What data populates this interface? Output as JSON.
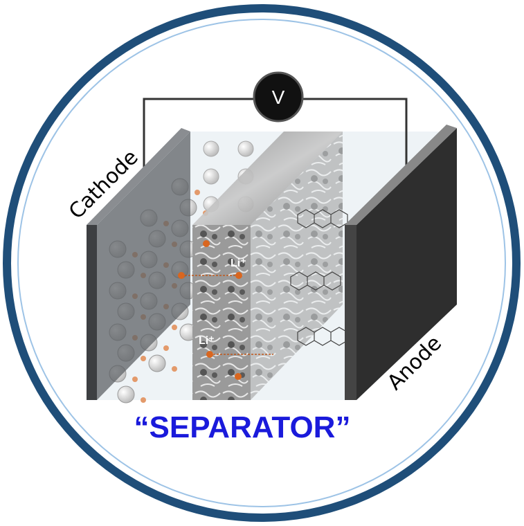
{
  "voltmeter": {
    "label": "V"
  },
  "electrodes": {
    "cathode": "Cathode",
    "anode": "Anode"
  },
  "ions": [
    "Li⁺",
    "Li⁺"
  ],
  "caption": "“SEPARATOR”"
}
